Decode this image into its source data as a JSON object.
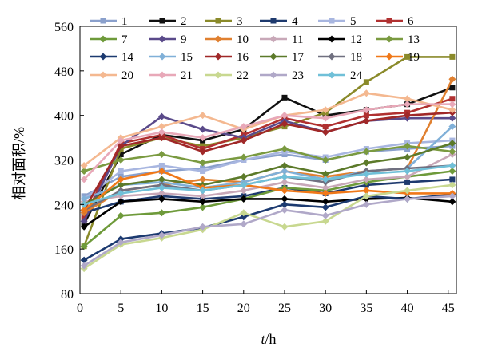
{
  "chart_data": {
    "type": "line",
    "xlabel_italic": "t",
    "xlabel_rest": "/h",
    "ylabel": "相对面积/%",
    "xlim": [
      0,
      46
    ],
    "ylim": [
      80,
      560
    ],
    "xticks": [
      0,
      5,
      10,
      15,
      20,
      25,
      30,
      35,
      40,
      45
    ],
    "yticks": [
      80,
      160,
      240,
      320,
      400,
      480,
      560
    ],
    "grid": false,
    "legend_placement": "top-left (inside, 6 columns x 4 rows)",
    "x": [
      0.5,
      5,
      10,
      15,
      20,
      25,
      30,
      35,
      40,
      45.5
    ],
    "series": [
      {
        "name": "1",
        "color": "#8aa0cc",
        "marker": "square",
        "values": [
          255,
          290,
          300,
          305,
          320,
          330,
          320,
          335,
          340,
          345
        ]
      },
      {
        "name": "2",
        "color": "#111111",
        "marker": "square",
        "values": [
          205,
          330,
          365,
          355,
          375,
          432,
          400,
          410,
          420,
          450
        ]
      },
      {
        "name": "3",
        "color": "#8a8a2a",
        "marker": "square",
        "values": [
          165,
          340,
          360,
          345,
          360,
          380,
          405,
          460,
          505,
          505
        ]
      },
      {
        "name": "4",
        "color": "#1e3a6e",
        "marker": "square",
        "values": [
          225,
          245,
          255,
          250,
          255,
          270,
          260,
          275,
          280,
          285
        ]
      },
      {
        "name": "5",
        "color": "#a8b6e0",
        "marker": "square",
        "values": [
          250,
          300,
          310,
          300,
          320,
          335,
          325,
          340,
          350,
          355
        ]
      },
      {
        "name": "6",
        "color": "#b03030",
        "marker": "square",
        "values": [
          215,
          350,
          365,
          340,
          365,
          395,
          380,
          400,
          405,
          430
        ]
      },
      {
        "name": "7",
        "color": "#6e9a3a",
        "marker": "diamond",
        "values": [
          165,
          220,
          225,
          235,
          250,
          270,
          265,
          280,
          290,
          300
        ]
      },
      {
        "name": "9",
        "color": "#5a4a8a",
        "marker": "diamond",
        "values": [
          210,
          345,
          398,
          375,
          360,
          390,
          370,
          390,
          395,
          395
        ]
      },
      {
        "name": "10",
        "color": "#e08030",
        "marker": "diamond",
        "values": [
          225,
          265,
          275,
          285,
          280,
          300,
          290,
          300,
          305,
          465
        ]
      },
      {
        "name": "11",
        "color": "#c8a8b8",
        "marker": "diamond",
        "values": [
          245,
          255,
          260,
          255,
          265,
          280,
          270,
          285,
          290,
          330
        ]
      },
      {
        "name": "12",
        "color": "#000000",
        "marker": "diamond",
        "values": [
          200,
          245,
          250,
          245,
          250,
          250,
          245,
          250,
          252,
          245
        ]
      },
      {
        "name": "13",
        "color": "#7a9a40",
        "marker": "diamond",
        "values": [
          300,
          320,
          330,
          315,
          325,
          340,
          320,
          335,
          345,
          335
        ]
      },
      {
        "name": "14",
        "color": "#1c3a70",
        "marker": "diamond",
        "values": [
          140,
          178,
          188,
          198,
          218,
          240,
          235,
          255,
          250,
          258
        ]
      },
      {
        "name": "15",
        "color": "#80b0d8",
        "marker": "diamond",
        "values": [
          250,
          275,
          280,
          270,
          280,
          300,
          285,
          300,
          305,
          380
        ]
      },
      {
        "name": "16",
        "color": "#a02828",
        "marker": "diamond",
        "values": [
          230,
          345,
          360,
          335,
          355,
          385,
          370,
          390,
          400,
          405
        ]
      },
      {
        "name": "17",
        "color": "#5c7a2a",
        "marker": "diamond",
        "values": [
          240,
          275,
          285,
          275,
          290,
          310,
          295,
          315,
          325,
          350
        ]
      },
      {
        "name": "18",
        "color": "#707080",
        "marker": "diamond",
        "values": [
          230,
          265,
          275,
          265,
          275,
          290,
          280,
          300,
          305,
          310
        ]
      },
      {
        "name": "19",
        "color": "#f07818",
        "marker": "diamond",
        "values": [
          230,
          285,
          300,
          270,
          275,
          265,
          260,
          265,
          260,
          260
        ]
      },
      {
        "name": "20",
        "color": "#f4b890",
        "marker": "diamond",
        "values": [
          310,
          360,
          380,
          400,
          375,
          400,
          410,
          440,
          430,
          410
        ]
      },
      {
        "name": "21",
        "color": "#e8a8b8",
        "marker": "diamond",
        "values": [
          285,
          355,
          370,
          360,
          380,
          400,
          395,
          410,
          420,
          420
        ]
      },
      {
        "name": "22",
        "color": "#c8d890",
        "marker": "diamond",
        "values": [
          125,
          168,
          180,
          195,
          225,
          200,
          210,
          255,
          265,
          275
        ]
      },
      {
        "name": "23",
        "color": "#b0a8c8",
        "marker": "diamond",
        "values": [
          130,
          172,
          185,
          200,
          205,
          230,
          220,
          240,
          250,
          255
        ]
      },
      {
        "name": "24",
        "color": "#70c0d8",
        "marker": "diamond",
        "values": [
          240,
          260,
          270,
          265,
          275,
          290,
          285,
          295,
          300,
          310
        ]
      }
    ]
  }
}
